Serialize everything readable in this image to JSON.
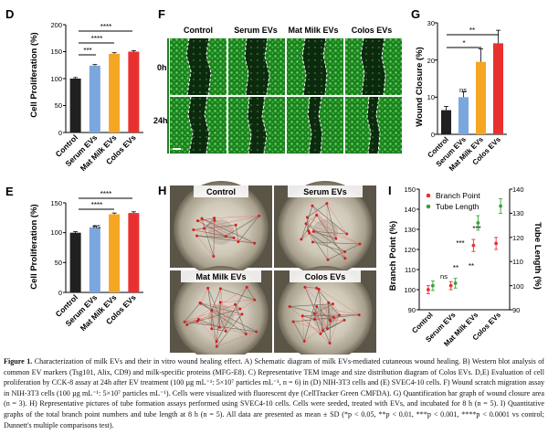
{
  "panels": {
    "D": {
      "letter": "D",
      "ylabel": "Cell Proliferation (%)",
      "yticks": [
        "0",
        "50",
        "100",
        "150",
        "200"
      ],
      "sig": [
        "***",
        "****",
        "****"
      ]
    },
    "E": {
      "letter": "E",
      "ylabel": "Cell Proliferation (%)",
      "yticks": [
        "0",
        "50",
        "100",
        "150"
      ],
      "sig": [
        "ns",
        "****",
        "****"
      ]
    },
    "F": {
      "letter": "F",
      "headers": [
        "Control",
        "Serum EVs",
        "Mat Milk EVs",
        "Colos EVs"
      ],
      "rows": [
        "0h",
        "24h"
      ]
    },
    "G": {
      "letter": "G",
      "ylabel": "Wound Closure (%)",
      "yticks": [
        "0",
        "10",
        "20",
        "30"
      ],
      "sig": [
        "**",
        "*"
      ],
      "bar_sig": "ns"
    },
    "H": {
      "letter": "H",
      "labels": [
        "Control",
        "Serum EVs",
        "Mat Milk EVs",
        "Colos EVs"
      ]
    },
    "I": {
      "letter": "I",
      "ylabel_left": "Branch Point (%)",
      "ylabel_right": "Tube Length (%)",
      "yticks_left": [
        "90",
        "100",
        "110",
        "120",
        "130",
        "140",
        "150"
      ],
      "yticks_right": [
        "90",
        "100",
        "110",
        "120",
        "130",
        "140"
      ],
      "legend": [
        "Branch Point",
        "Tube Length"
      ],
      "sig_top": [
        "ns",
        "***",
        "***"
      ],
      "sig_bottom": [
        "**",
        "**"
      ]
    }
  },
  "colors": {
    "control": "#202020",
    "serum": "#7ba7df",
    "matmilk": "#f5a623",
    "colos": "#e8312f",
    "branch": "#e8312f",
    "tube": "#3aa33a"
  },
  "chart_data": [
    {
      "panel": "D",
      "type": "bar",
      "categories": [
        "Control",
        "Serum EVs",
        "Mat Milk EVs",
        "Colos EVs"
      ],
      "values": [
        100,
        124,
        146,
        150
      ],
      "errors": [
        2,
        2,
        2,
        2
      ],
      "ylabel": "Cell Proliferation (%)",
      "ylim": [
        0,
        200
      ]
    },
    {
      "panel": "E",
      "type": "bar",
      "categories": [
        "Control",
        "Serum EVs",
        "Mat Milk EVs",
        "Colos EVs"
      ],
      "values": [
        100,
        109,
        131,
        133
      ],
      "errors": [
        2,
        2,
        2,
        2
      ],
      "ylabel": "Cell Proliferation (%)",
      "ylim": [
        0,
        150
      ]
    },
    {
      "panel": "G",
      "type": "bar",
      "categories": [
        "Control",
        "Serum EVs",
        "Mat Milk EVs",
        "Colos EVs"
      ],
      "values": [
        6.5,
        10,
        19.5,
        24.5
      ],
      "errors": [
        1,
        1.5,
        3.5,
        3.5
      ],
      "ylabel": "Wound Closure (%)",
      "ylim": [
        0,
        30
      ]
    },
    {
      "panel": "I",
      "type": "scatter",
      "categories": [
        "Control",
        "Serum EVs",
        "Mat Milk EVs",
        "Colos EVs"
      ],
      "series": [
        {
          "name": "Branch Point",
          "axis": "left",
          "values": [
            100,
            102,
            122,
            123
          ],
          "errors": [
            2,
            2,
            3,
            3
          ]
        },
        {
          "name": "Tube Length",
          "axis": "right",
          "values": [
            100,
            101,
            126,
            133
          ],
          "errors": [
            2,
            2,
            3,
            3
          ]
        }
      ],
      "ylim_left": [
        90,
        150
      ],
      "ylim_right": [
        90,
        140
      ]
    }
  ],
  "caption": {
    "label": "Figure 1.",
    "text": " Characterization of milk EVs and their in vitro wound healing effect. A) Schematic diagram of milk EVs-mediated cutaneous wound healing. B) Western blot analysis of common EV markers (Tsg101, Alix, CD9) and milk-specific proteins (MFG-E8). C) Representative TEM image and size distribution diagram of Colos EVs. D,E) Evaluation of cell proliferation by CCK-8 assay at 24h after EV treatment (100 µg mL⁻¹: 5×10⁷ particles mL⁻¹, n = 6) in (D) NIH-3T3 cells and (E) SVEC4-10 cells. F) Wound scratch migration assay in NIH-3T3 cells (100 µg mL⁻¹: 5×10⁷ particles mL⁻¹). Cells were visualized with fluorescent dye (CellTracker Green CMFDA). G) Quantification bar graph of wound closure area (n = 3). H) Representative pictures of tube formation assays performed using SVEC4-10 cells. Cells were seeded, treated with EVs, and incubated for 8 h (n = 5). I) Quantitative graphs of the total branch point numbers and tube length at 8 h (n = 5). All data are presented as mean ± SD (*p < 0.05, **p < 0.01, ***p < 0.001, ****p < 0.0001 vs control; Dunnett's multiple comparisons test)."
  }
}
